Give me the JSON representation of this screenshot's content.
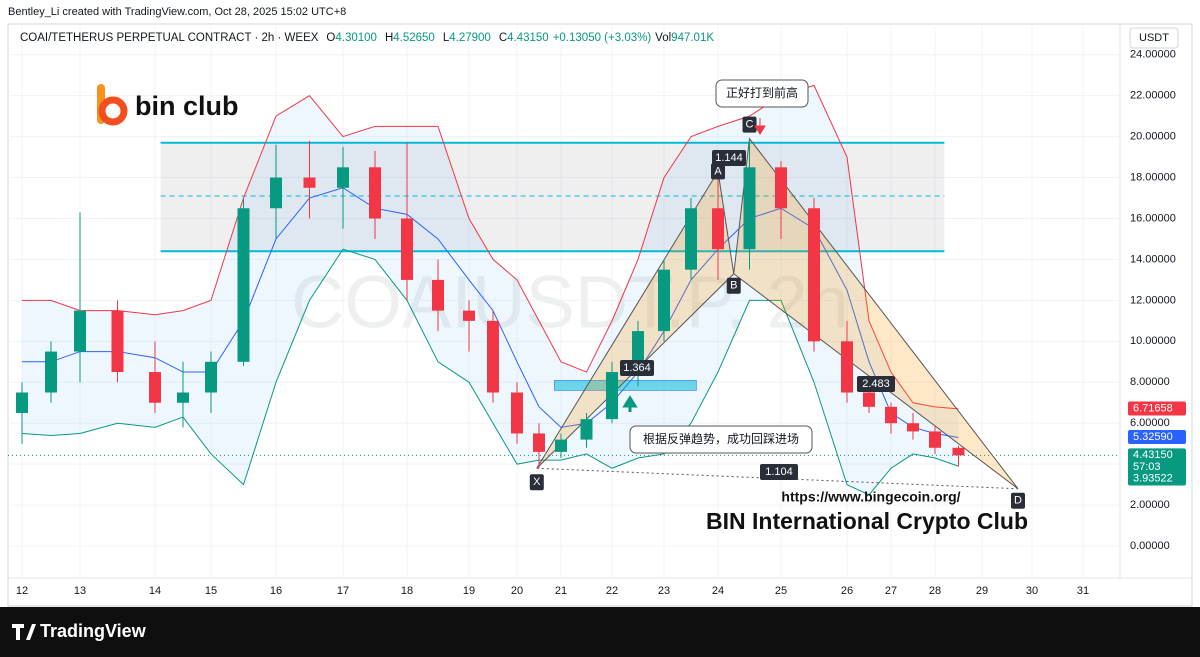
{
  "header": "Bentley_Li created with TradingView.com, Oct 28, 2025 15:02 UTC+8",
  "footer": "TradingView",
  "logo": "bin club",
  "chart_data": {
    "type": "candlestick",
    "legend": {
      "symbol": "COAI/TETHERUS PERPETUAL CONTRACT · 2h · WEEX",
      "items": [
        {
          "key": "O",
          "value": 4.301,
          "label": "4.30100"
        },
        {
          "key": "H",
          "value": 4.5265,
          "label": "4.52650"
        },
        {
          "key": "L",
          "value": 4.279,
          "label": "4.27900"
        },
        {
          "key": "C",
          "value": 4.4315,
          "label": "4.43150"
        }
      ],
      "change": "+0.13050 (+3.03%)",
      "volume_key": "Vol",
      "volume": "947.01K"
    },
    "currency": "USDT",
    "watermark": "COAIUSDT.P, 2h",
    "xlim": [
      11.76,
      31.73
    ],
    "xticks": [
      12,
      13,
      14,
      15,
      16,
      17,
      18,
      19,
      20,
      21,
      22,
      23,
      24,
      25,
      26,
      27,
      28,
      29,
      30,
      31
    ],
    "ylim": [
      -1.56,
      25.5
    ],
    "yticks": [
      {
        "value": 0,
        "label": "0.00000"
      },
      {
        "value": 2,
        "label": "2.00000"
      },
      {
        "value": 4,
        "label": "4.00000"
      },
      {
        "value": 6,
        "label": "6.00000"
      },
      {
        "value": 8,
        "label": "8.00000"
      },
      {
        "value": 10,
        "label": "10.00000"
      },
      {
        "value": 12,
        "label": "12.00000"
      },
      {
        "value": 14,
        "label": "14.00000"
      },
      {
        "value": 16,
        "label": "16.00000"
      },
      {
        "value": 18,
        "label": "18.00000"
      },
      {
        "value": 20,
        "label": "20.00000"
      },
      {
        "value": 22,
        "label": "22.00000"
      },
      {
        "value": 24,
        "label": "24.00000"
      }
    ],
    "up_color": "#089981",
    "down_color": "#f23645",
    "candles": {
      "x": [
        12.0,
        12.5,
        13.0,
        13.5,
        14.0,
        14.5,
        15.0,
        15.5,
        16.0,
        16.5,
        17.0,
        17.5,
        18.0,
        18.5,
        19.0,
        19.5,
        20.0,
        20.5,
        21.0,
        21.5,
        22.0,
        22.5,
        23.0,
        23.5,
        24.0,
        24.5,
        25.0,
        25.5,
        26.0,
        26.5,
        27.0,
        27.5,
        28.0,
        28.5
      ],
      "open": [
        6.5,
        7.5,
        9.5,
        11.5,
        8.5,
        7,
        7.5,
        9,
        16.5,
        18,
        17.5,
        18.5,
        16,
        13,
        11.5,
        11,
        7.5,
        5.5,
        4.6,
        5.2,
        6.2,
        8.5,
        10.5,
        13.5,
        16.5,
        14.5,
        18.5,
        16.5,
        10,
        7.5,
        6.8,
        6,
        5.6,
        4.8
      ],
      "high": [
        8,
        10,
        16.3,
        12,
        10,
        9,
        9.5,
        17,
        19.6,
        19.8,
        19.5,
        19.3,
        19.7,
        14,
        12,
        11.5,
        8,
        6,
        5.5,
        6.5,
        9,
        11,
        14,
        17,
        18,
        19.9,
        18.8,
        17,
        11,
        8,
        7,
        6.5,
        5.9,
        4.9
      ],
      "low": [
        5,
        7,
        8,
        8,
        6.5,
        5.8,
        6.5,
        8.8,
        15,
        16,
        15.5,
        15,
        12,
        10.5,
        9.5,
        7,
        5,
        3.8,
        4.3,
        4.8,
        6,
        7.8,
        10,
        13,
        13,
        13.5,
        15,
        9.5,
        7,
        6.5,
        5.5,
        5.2,
        4.5,
        3.9
      ],
      "close": [
        7.5,
        9.5,
        11.5,
        8.5,
        7,
        7.5,
        9,
        16.5,
        18,
        17.5,
        18.5,
        16,
        13,
        11.5,
        11,
        7.5,
        5.5,
        4.6,
        5.2,
        6.2,
        8.5,
        10.5,
        13.5,
        16.5,
        14.5,
        18.5,
        16.5,
        10,
        7.5,
        6.8,
        6,
        5.6,
        4.8,
        4.43
      ]
    },
    "bands": {
      "upper": [
        12,
        12,
        11.5,
        11.5,
        11.3,
        11.5,
        12,
        17,
        21,
        22,
        20,
        20.5,
        20.5,
        20.5,
        16,
        14,
        13,
        11,
        9,
        8.5,
        11,
        14,
        18,
        20,
        20.5,
        21,
        22,
        22.5,
        19,
        11,
        8.5,
        7,
        6.8,
        6.7
      ],
      "basis": [
        9,
        9,
        9.5,
        9.5,
        9.2,
        8.5,
        8.5,
        11,
        15,
        17,
        17.5,
        16.5,
        16.2,
        15,
        13,
        11.5,
        9,
        6.8,
        5.8,
        6,
        7,
        8.5,
        10.5,
        13,
        14.5,
        16,
        16.5,
        15.5,
        12.5,
        9,
        6.5,
        5.8,
        5.5,
        5.3
      ],
      "lower": [
        5.5,
        5.4,
        5.5,
        6,
        5.8,
        6.3,
        4.5,
        3,
        8,
        12,
        14.5,
        14,
        12,
        9,
        8,
        6,
        4,
        4.2,
        4.2,
        4.5,
        3.8,
        4.3,
        4.5,
        6,
        8.5,
        12,
        12,
        8,
        3,
        2.5,
        3.8,
        4.5,
        4.3,
        3.9
      ],
      "colors": [
        "#f23645",
        "#2962ff",
        "#089981"
      ]
    },
    "range_zone": {
      "x": [
        14.1,
        28.2
      ],
      "top": 19.7,
      "mid": 17.1,
      "bottom": 14.4
    },
    "entry_zone": {
      "x": [
        20.85,
        23.6
      ],
      "y": [
        7.6,
        8.1
      ]
    },
    "pattern": {
      "labels": [
        "X",
        "A",
        "B",
        "C",
        "D"
      ],
      "x": [
        20.45,
        24.0,
        24.25,
        24.5,
        29.72
      ],
      "y": [
        3.8,
        18.3,
        13.3,
        19.9,
        2.8
      ]
    },
    "ratios": [
      "1.144",
      "1.364",
      "2.483",
      "1.104"
    ],
    "annotations": [
      "正好打到前高",
      "根据反弹趋势，成功回踩进场",
      "https://www.bingecoin.org/",
      "BIN International Crypto Club"
    ],
    "price_labels": [
      {
        "value": 6.71658,
        "label": "6.71658",
        "color": "#f23645"
      },
      {
        "value": 5.3259,
        "label": "5.32590",
        "color": "#2962ff"
      },
      {
        "value": 4.4315,
        "label": "4.43150",
        "color": "#089981"
      },
      {
        "value": 3.93522,
        "label": "3.93522",
        "color": "#089981"
      }
    ],
    "countdown": "57:03"
  }
}
